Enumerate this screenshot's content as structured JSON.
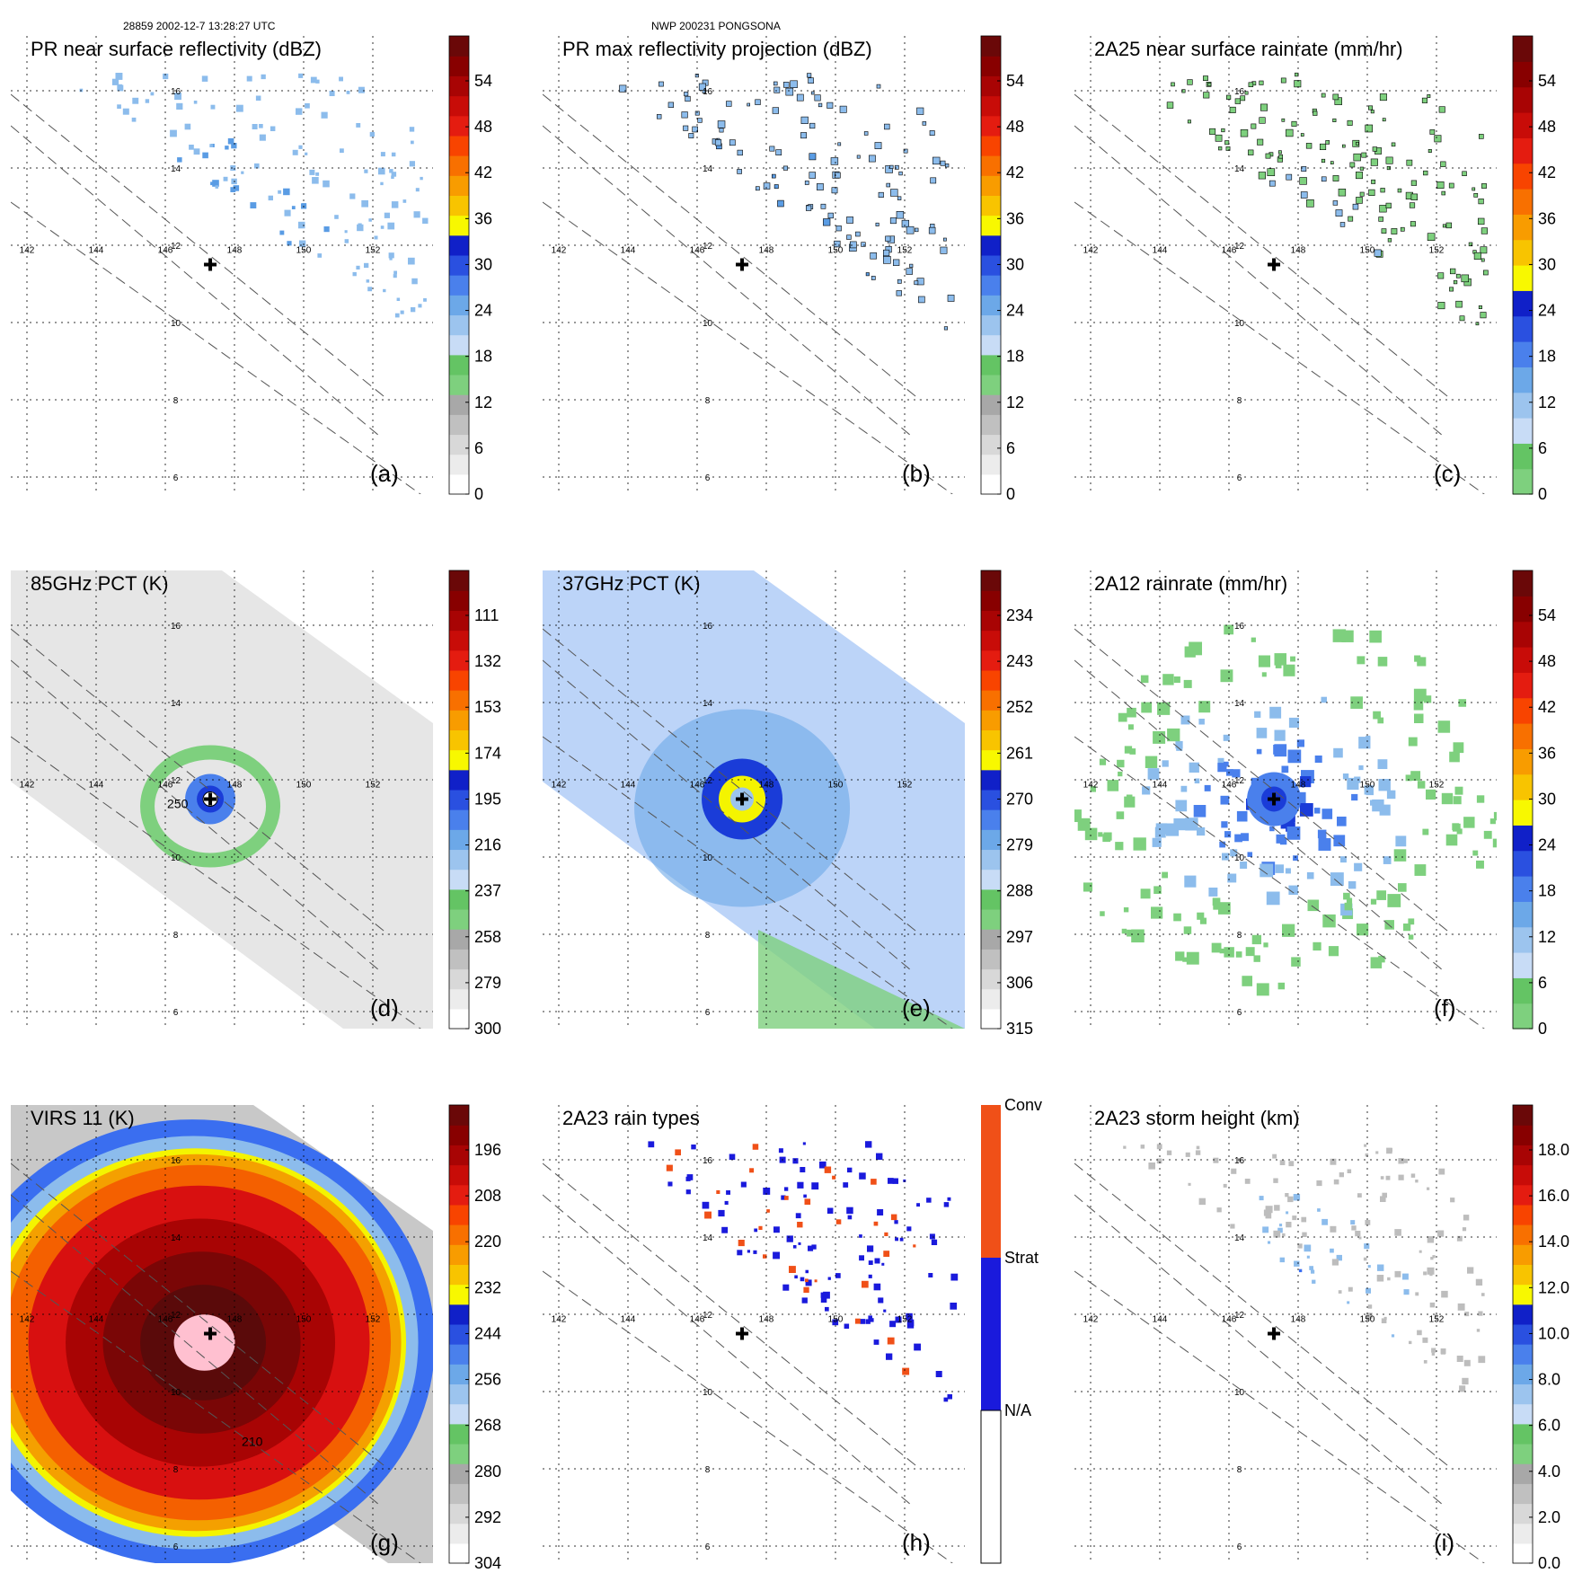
{
  "header": {
    "left": "28859 2002-12-7 13:28:27 UTC",
    "center": "NWP 200231 PONGSONA"
  },
  "axes": {
    "lon_labels": [
      "142",
      "144",
      "146",
      "148",
      "150",
      "152"
    ],
    "lat_labels": [
      "16",
      "14",
      "12",
      "10",
      "8",
      "6"
    ]
  },
  "colors": {
    "dbz": [
      "#ffffff",
      "#efefef",
      "#d9d9d9",
      "#bdbdbd",
      "#a0a0a0",
      "#7ed07e",
      "#5cc05c",
      "#bcd6f4",
      "#8cbcec",
      "#5a9ce4",
      "#3a6ef0",
      "#1a3cd8",
      "#0a18c0",
      "#f4f400",
      "#f4c000",
      "#f4a000",
      "#f48000",
      "#f46000",
      "#f43000",
      "#e01010",
      "#c00808",
      "#a00404",
      "#800000",
      "#5a0a0a"
    ],
    "gray": [
      "#ffffff",
      "#f4f4f4",
      "#e8e8e8",
      "#dadada",
      "#cccccc",
      "#bcbcbc",
      "#aaaaaa",
      "#8a8a8a"
    ],
    "coast": "#000000",
    "rain_conv": "#f05018",
    "rain_strat": "#1a1adc"
  },
  "panels": [
    {
      "id": "a",
      "title": "PR near surface reflectivity (dBZ)",
      "letter": "(a)",
      "colorbar_ticks": [
        "54",
        "48",
        "42",
        "36",
        "30",
        "24",
        "18",
        "12",
        "6",
        "0"
      ],
      "chart_data": {
        "type": "heatmap",
        "variable": "PR near surface reflectivity",
        "units": "dBZ",
        "colorbar_range": [
          0,
          60
        ],
        "colorbar_ticks": [
          0,
          6,
          12,
          18,
          24,
          30,
          36,
          42,
          48,
          54
        ],
        "lon_range": [
          141,
          153
        ],
        "lat_range": [
          5,
          17
        ],
        "grid": true,
        "swath": "PR"
      }
    },
    {
      "id": "b",
      "title": "PR max reflectivity projection (dBZ)",
      "letter": "(b)",
      "colorbar_ticks": [
        "54",
        "48",
        "42",
        "36",
        "30",
        "24",
        "18",
        "12",
        "6",
        "0"
      ],
      "chart_data": {
        "type": "heatmap",
        "variable": "PR max reflectivity projection",
        "units": "dBZ",
        "colorbar_range": [
          0,
          60
        ],
        "colorbar_ticks": [
          0,
          6,
          12,
          18,
          24,
          30,
          36,
          42,
          48,
          54
        ],
        "lon_range": [
          141,
          153
        ],
        "lat_range": [
          5,
          17
        ],
        "grid": true,
        "swath": "PR"
      }
    },
    {
      "id": "c",
      "title": "2A25 near surface rainrate (mm/hr)",
      "letter": "(c)",
      "colorbar_ticks": [
        "54",
        "48",
        "42",
        "36",
        "30",
        "24",
        "18",
        "12",
        "6",
        "0"
      ],
      "chart_data": {
        "type": "heatmap",
        "variable": "2A25 near surface rainrate",
        "units": "mm/hr",
        "colorbar_range": [
          0,
          60
        ],
        "colorbar_ticks": [
          0,
          6,
          12,
          18,
          24,
          30,
          36,
          42,
          48,
          54
        ],
        "lon_range": [
          141,
          153
        ],
        "lat_range": [
          5,
          17
        ],
        "grid": true,
        "swath": "PR"
      }
    },
    {
      "id": "d",
      "title": "85GHz PCT (K)",
      "letter": "(d)",
      "colorbar_ticks": [
        "111",
        "132",
        "153",
        "174",
        "195",
        "216",
        "237",
        "258",
        "279",
        "300"
      ],
      "contour_label": "250",
      "chart_data": {
        "type": "heatmap",
        "variable": "85GHz PCT",
        "units": "K",
        "colorbar_range": [
          300,
          90
        ],
        "colorbar_ticks": [
          300,
          279,
          258,
          237,
          216,
          195,
          174,
          153,
          132,
          111
        ],
        "lon_range": [
          141,
          153
        ],
        "lat_range": [
          5,
          17
        ],
        "grid": true,
        "swath": "TMI"
      }
    },
    {
      "id": "e",
      "title": "37GHz PCT (K)",
      "letter": "(e)",
      "colorbar_ticks": [
        "234",
        "243",
        "252",
        "261",
        "270",
        "279",
        "288",
        "297",
        "306",
        "315"
      ],
      "chart_data": {
        "type": "heatmap",
        "variable": "37GHz PCT",
        "units": "K",
        "colorbar_range": [
          315,
          225
        ],
        "colorbar_ticks": [
          315,
          306,
          297,
          288,
          279,
          270,
          261,
          252,
          243,
          234
        ],
        "lon_range": [
          141,
          153
        ],
        "lat_range": [
          5,
          17
        ],
        "grid": true,
        "swath": "TMI"
      }
    },
    {
      "id": "f",
      "title": "2A12 rainrate (mm/hr)",
      "letter": "(f)",
      "colorbar_ticks": [
        "54",
        "48",
        "42",
        "36",
        "30",
        "24",
        "18",
        "12",
        "6",
        "0"
      ],
      "chart_data": {
        "type": "heatmap",
        "variable": "2A12 rainrate",
        "units": "mm/hr",
        "colorbar_range": [
          0,
          60
        ],
        "colorbar_ticks": [
          0,
          6,
          12,
          18,
          24,
          30,
          36,
          42,
          48,
          54
        ],
        "lon_range": [
          141,
          153
        ],
        "lat_range": [
          5,
          17
        ],
        "grid": true,
        "swath": "TMI"
      }
    },
    {
      "id": "g",
      "title": "VIRS   11  (K)",
      "letter": "(g)",
      "colorbar_ticks": [
        "196",
        "208",
        "220",
        "232",
        "244",
        "256",
        "268",
        "280",
        "292",
        "304"
      ],
      "contour_label": "210",
      "chart_data": {
        "type": "heatmap",
        "variable": "VIRS 11",
        "units": "K",
        "colorbar_range": [
          304,
          184
        ],
        "colorbar_ticks": [
          304,
          292,
          280,
          268,
          256,
          244,
          232,
          220,
          208,
          196
        ],
        "lon_range": [
          141,
          153
        ],
        "lat_range": [
          5,
          17
        ],
        "grid": true,
        "swath": "VIRS"
      }
    },
    {
      "id": "h",
      "title": "2A23 rain types",
      "letter": "(h)",
      "colorbar_ticks": [
        "Conv",
        "Strat",
        "N/A"
      ],
      "chart_data": {
        "type": "heatmap",
        "variable": "2A23 rain types",
        "categories": [
          "Conv",
          "Strat",
          "N/A"
        ],
        "lon_range": [
          141,
          153
        ],
        "lat_range": [
          5,
          17
        ],
        "grid": true,
        "swath": "PR"
      }
    },
    {
      "id": "i",
      "title": "2A23 storm height (km)",
      "letter": "(i)",
      "colorbar_ticks": [
        "18.0",
        "16.0",
        "14.0",
        "12.0",
        "10.0",
        "8.0",
        "6.0",
        "4.0",
        "2.0",
        "0.0"
      ],
      "chart_data": {
        "type": "heatmap",
        "variable": "2A23 storm height",
        "units": "km",
        "colorbar_range": [
          0,
          20
        ],
        "colorbar_ticks": [
          0,
          2,
          4,
          6,
          8,
          10,
          12,
          14,
          16,
          18
        ],
        "lon_range": [
          141,
          153
        ],
        "lat_range": [
          5,
          17
        ],
        "grid": true,
        "swath": "PR"
      }
    }
  ]
}
